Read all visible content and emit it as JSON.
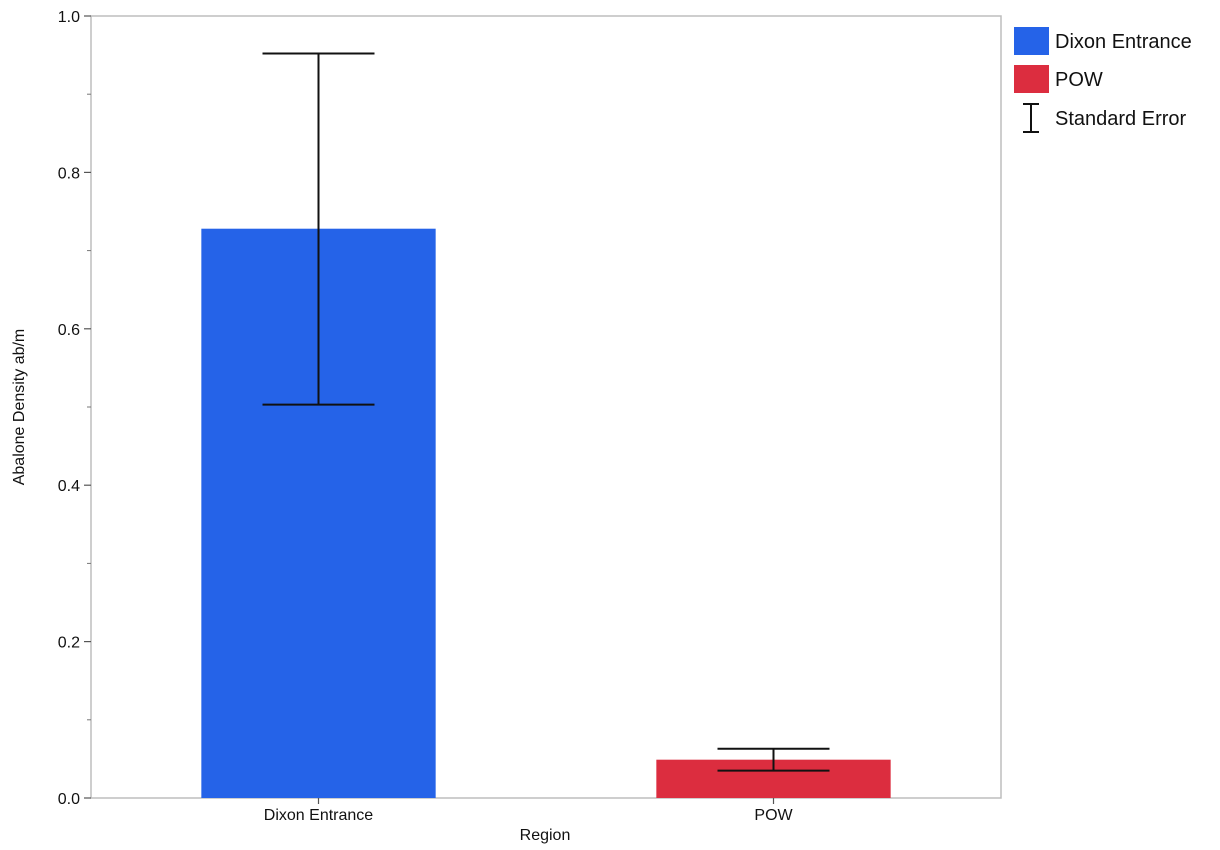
{
  "chart_data": {
    "type": "bar",
    "title": "",
    "xlabel": "Region",
    "ylabel": "Abalone Density ab/m",
    "categories": [
      "Dixon Entrance",
      "POW"
    ],
    "values": [
      0.728,
      0.049
    ],
    "error_lower": [
      0.503,
      0.035
    ],
    "error_upper": [
      0.952,
      0.063
    ],
    "colors": [
      "#2563e8",
      "#dc2d3f"
    ],
    "ylim": [
      0,
      1.0
    ],
    "y_ticks": [
      "0.0",
      "0.2",
      "0.4",
      "0.6",
      "0.8",
      "1.0"
    ],
    "y_tick_values": [
      0,
      0.2,
      0.4,
      0.6,
      0.8,
      1.0
    ],
    "y_minor_step": 0.1,
    "grid": false,
    "legend": {
      "position": "right",
      "entries": [
        {
          "label": "Dixon Entrance",
          "kind": "swatch",
          "color": "#2563e8"
        },
        {
          "label": "POW",
          "kind": "swatch",
          "color": "#dc2d3f"
        },
        {
          "label": "Standard Error",
          "kind": "error-bar",
          "color": "#111111"
        }
      ]
    }
  }
}
